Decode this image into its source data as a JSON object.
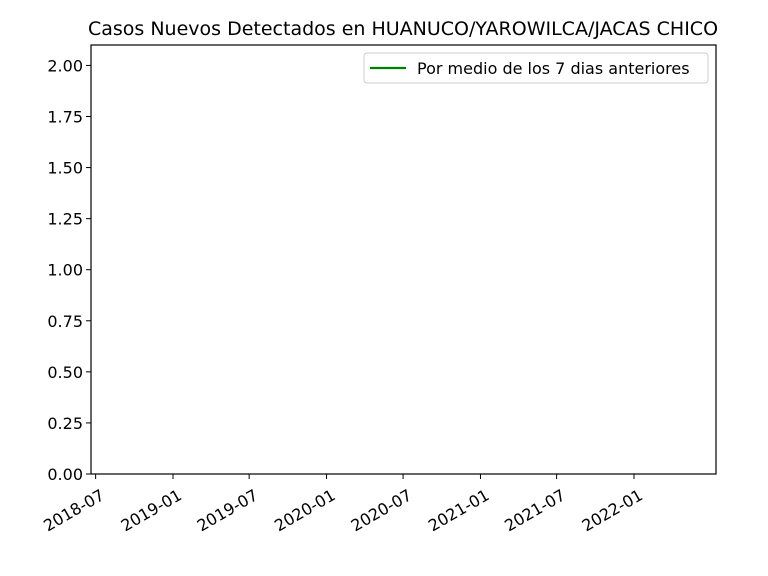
{
  "chart_data": {
    "type": "line",
    "title": "Casos Nuevos Detectados en HUANUCO/YAROWILCA/JACAS CHICO",
    "xlabel": "",
    "ylabel": "",
    "x_ticks": [
      "2018-07",
      "2019-01",
      "2019-07",
      "2020-01",
      "2020-07",
      "2021-01",
      "2021-07",
      "2022-01"
    ],
    "y_ticks": [
      "0.00",
      "0.25",
      "0.50",
      "0.75",
      "1.00",
      "1.25",
      "1.50",
      "1.75",
      "2.00"
    ],
    "ylim": [
      0,
      2.1
    ],
    "xlim": [
      "2018-06-20",
      "2022-07-15"
    ],
    "grid": false,
    "legend_position": "top-right",
    "series": [
      {
        "name": "Por medio de los 7 dias anteriores",
        "color": "#008000",
        "x": [],
        "y": []
      }
    ]
  }
}
